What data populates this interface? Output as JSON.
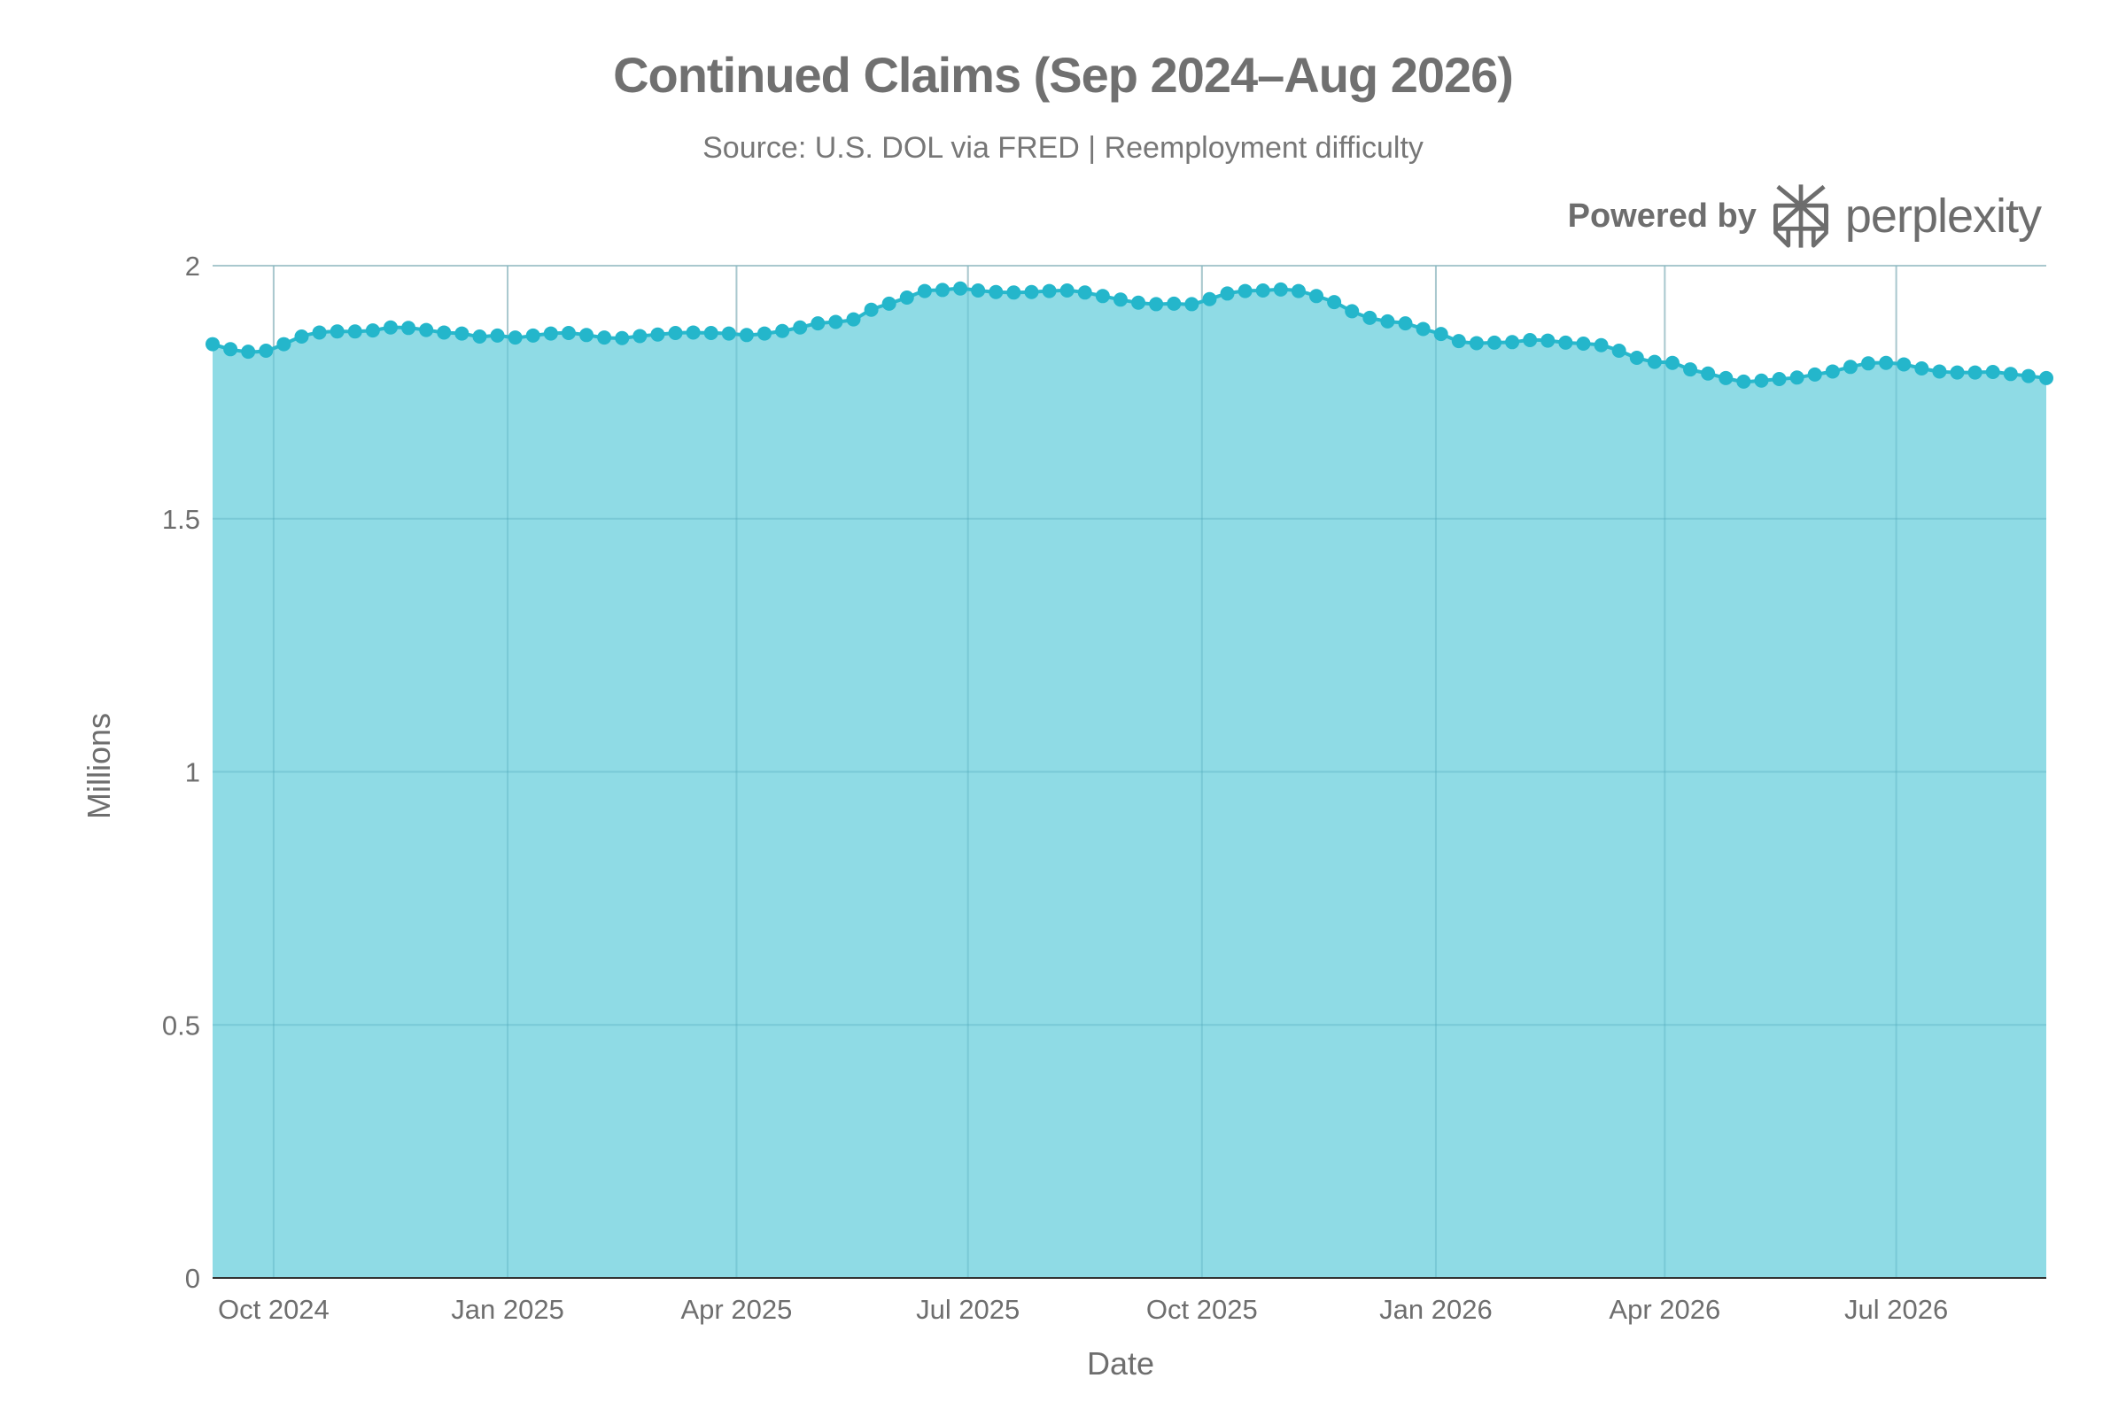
{
  "title": "Continued Claims (Sep 2024–Aug 2026)",
  "subtitle": "Source: U.S. DOL via FRED | Reemployment difficulty",
  "brand": {
    "powered_by": "Powered by",
    "name": "perplexity",
    "logo_icon": "perplexity-logo-icon"
  },
  "colors": {
    "area_fill": "#8fdbe5",
    "line": "#29b8cc",
    "marker": "#24b6cb",
    "grid": "#d9d9d9",
    "text": "#707070"
  },
  "chart_data": {
    "type": "area",
    "title": "Continued Claims (Sep 2024–Aug 2026)",
    "subtitle": "Source: U.S. DOL via FRED | Reemployment difficulty",
    "xlabel": "Date",
    "ylabel": "Millions",
    "xlim": [
      "2024-09-07",
      "2026-08-29"
    ],
    "ylim": [
      0,
      2
    ],
    "x_ticks": [
      {
        "date": "2024-10-01",
        "label": "Oct 2024"
      },
      {
        "date": "2025-01-01",
        "label": "Jan 2025"
      },
      {
        "date": "2025-04-01",
        "label": "Apr 2025"
      },
      {
        "date": "2025-07-01",
        "label": "Jul 2025"
      },
      {
        "date": "2025-10-01",
        "label": "Oct 2025"
      },
      {
        "date": "2026-01-01",
        "label": "Jan 2026"
      },
      {
        "date": "2026-04-01",
        "label": "Apr 2026"
      },
      {
        "date": "2026-07-01",
        "label": "Jul 2026"
      }
    ],
    "y_ticks": [
      {
        "value": 0,
        "label": "0"
      },
      {
        "value": 0.5,
        "label": "0.5"
      },
      {
        "value": 1,
        "label": "1"
      },
      {
        "value": 1.5,
        "label": "1.5"
      },
      {
        "value": 2,
        "label": "2"
      }
    ],
    "grid": true,
    "legend": false,
    "frequency": "weekly",
    "start_date": "2024-09-07",
    "series": [
      {
        "values": [
          1.845,
          1.835,
          1.83,
          1.832,
          1.845,
          1.86,
          1.868,
          1.87,
          1.87,
          1.872,
          1.878,
          1.877,
          1.873,
          1.868,
          1.866,
          1.86,
          1.862,
          1.858,
          1.862,
          1.866,
          1.867,
          1.863,
          1.858,
          1.857,
          1.861,
          1.864,
          1.867,
          1.868,
          1.867,
          1.866,
          1.863,
          1.866,
          1.871,
          1.878,
          1.886,
          1.889,
          1.894,
          1.913,
          1.925,
          1.937,
          1.95,
          1.952,
          1.955,
          1.951,
          1.948,
          1.947,
          1.948,
          1.95,
          1.951,
          1.947,
          1.94,
          1.933,
          1.927,
          1.924,
          1.925,
          1.924,
          1.934,
          1.945,
          1.95,
          1.951,
          1.953,
          1.95,
          1.94,
          1.928,
          1.91,
          1.897,
          1.89,
          1.886,
          1.875,
          1.865,
          1.851,
          1.847,
          1.848,
          1.849,
          1.853,
          1.852,
          1.848,
          1.846,
          1.843,
          1.832,
          1.818,
          1.81,
          1.808,
          1.795,
          1.787,
          1.778,
          1.771,
          1.773,
          1.776,
          1.779,
          1.785,
          1.791,
          1.8,
          1.807,
          1.808,
          1.805,
          1.797,
          1.791,
          1.789,
          1.789,
          1.79,
          1.786,
          1.782,
          1.778
        ]
      }
    ]
  }
}
